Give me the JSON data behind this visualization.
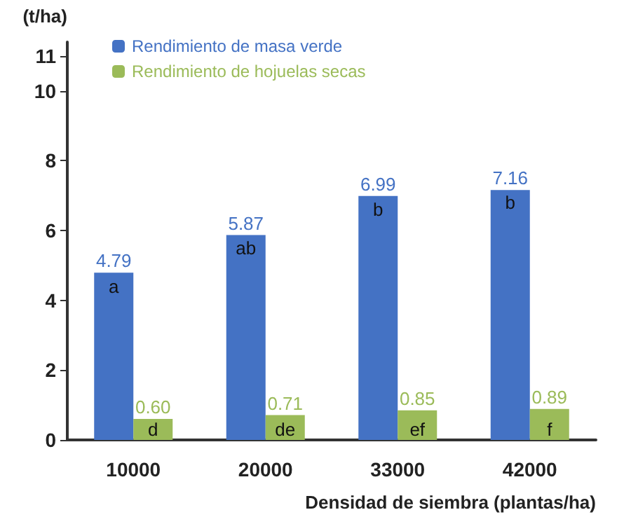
{
  "chart_data": {
    "type": "bar",
    "ylabel": "(t/ha)",
    "xlabel": "Densidad de siembra (plantas/ha)",
    "categories": [
      "10000",
      "20000",
      "33000",
      "42000"
    ],
    "series": [
      {
        "name": "Rendimiento de masa verde",
        "color": "#4472c4",
        "values": [
          4.79,
          5.87,
          6.99,
          7.16
        ],
        "value_labels": [
          "4.79",
          "5.87",
          "6.99",
          "7.16"
        ]
      },
      {
        "name": "Rendimiento de hojuelas secas",
        "color": "#9bbb59",
        "values": [
          0.6,
          0.71,
          0.85,
          0.89
        ],
        "value_labels": [
          "0.60",
          "0.71",
          "0.85",
          "0.89"
        ]
      }
    ],
    "ylim": [
      0,
      11.4
    ],
    "yticks": [
      0,
      2,
      4,
      6,
      8,
      10,
      11
    ],
    "grid": false,
    "legend": "top left",
    "annotations": [
      {
        "text": "a",
        "x": "10000",
        "y": 4.4
      },
      {
        "text": "ab",
        "x": "20000",
        "y": 5.5
      },
      {
        "text": "b",
        "x": "33000",
        "y": 6.6
      },
      {
        "text": "b",
        "x": "42000",
        "y": 6.8
      },
      {
        "text": "d",
        "x": "10000",
        "y": 0.3
      },
      {
        "text": "de",
        "x": "20000",
        "y": 0.3
      },
      {
        "text": "ef",
        "x": "33000",
        "y": 0.3
      },
      {
        "text": "f",
        "x": "42000",
        "y": 0.3
      }
    ]
  }
}
